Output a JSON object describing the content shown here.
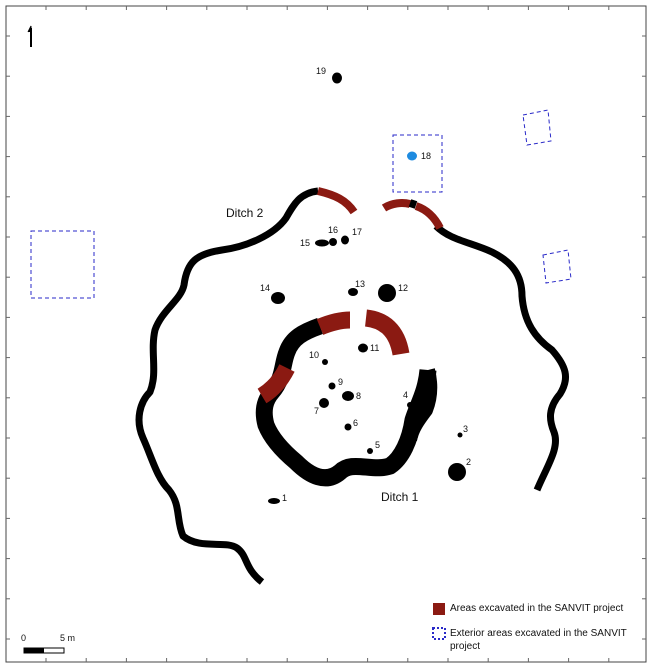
{
  "colors": {
    "feature": "#000000",
    "excavated": "#8b1a12",
    "exterior_dash": "#2a2ac8",
    "highlight_pit": "#1e8be0",
    "frame": "#444444"
  },
  "icons": {
    "north_arrow": "north-arrow-icon"
  },
  "ditches": {
    "ditch1_label": "Ditch 1",
    "ditch2_label": "Ditch 2"
  },
  "features": [
    {
      "id": "1",
      "label": "1"
    },
    {
      "id": "2",
      "label": "2"
    },
    {
      "id": "3",
      "label": "3"
    },
    {
      "id": "4",
      "label": "4"
    },
    {
      "id": "5",
      "label": "5"
    },
    {
      "id": "6",
      "label": "6"
    },
    {
      "id": "7",
      "label": "7"
    },
    {
      "id": "8",
      "label": "8"
    },
    {
      "id": "9",
      "label": "9"
    },
    {
      "id": "10",
      "label": "10"
    },
    {
      "id": "11",
      "label": "11"
    },
    {
      "id": "12",
      "label": "12"
    },
    {
      "id": "13",
      "label": "13"
    },
    {
      "id": "14",
      "label": "14"
    },
    {
      "id": "15",
      "label": "15"
    },
    {
      "id": "16",
      "label": "16"
    },
    {
      "id": "17",
      "label": "17"
    },
    {
      "id": "18",
      "label": "18"
    },
    {
      "id": "19",
      "label": "19"
    }
  ],
  "scale_bar": {
    "start_label": "0",
    "end_label": "5 m"
  },
  "legend": {
    "excavated_label": "Areas excavated in the SANVIT project",
    "exterior_label_line1": "Exterior areas excavated in the SANVIT",
    "exterior_label_line2": "project"
  }
}
